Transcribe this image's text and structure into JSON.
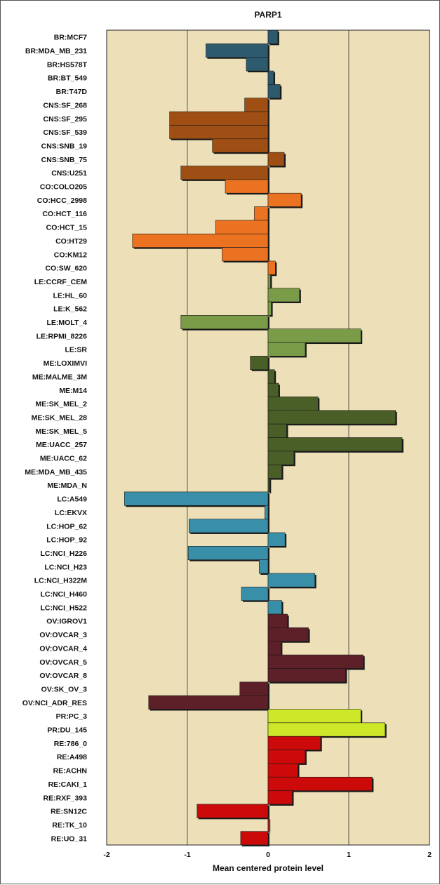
{
  "chart_data": {
    "type": "bar",
    "orientation": "horizontal",
    "title": "PARP1",
    "xlabel": "Mean centered protein level",
    "ylabel": "",
    "xlim": [
      -2,
      2
    ],
    "xticks": [
      "-2",
      "-1",
      "0",
      "1",
      "2"
    ],
    "grid": true,
    "legend": "none",
    "plot_background": "#ede0b8",
    "categories": [
      "BR:MCF7",
      "BR:MDA_MB_231",
      "BR:HS578T",
      "BR:BT_549",
      "BR:T47D",
      "CNS:SF_268",
      "CNS:SF_295",
      "CNS:SF_539",
      "CNS:SNB_19",
      "CNS:SNB_75",
      "CNS:U251",
      "CO:COLO205",
      "CO:HCC_2998",
      "CO:HCT_116",
      "CO:HCT_15",
      "CO:HT29",
      "CO:KM12",
      "CO:SW_620",
      "LE:CCRF_CEM",
      "LE:HL_60",
      "LE:K_562",
      "LE:MOLT_4",
      "LE:RPMI_8226",
      "LE:SR",
      "ME:LOXIMVI",
      "ME:MALME_3M",
      "ME:M14",
      "ME:SK_MEL_2",
      "ME:SK_MEL_28",
      "ME:SK_MEL_5",
      "ME:UACC_257",
      "ME:UACC_62",
      "ME:MDA_MB_435",
      "ME:MDA_N",
      "LC:A549",
      "LC:EKVX",
      "LC:HOP_62",
      "LC:HOP_92",
      "LC:NCI_H226",
      "LC:NCI_H23",
      "LC:NCI_H322M",
      "LC:NCI_H460",
      "LC:NCI_H522",
      "OV:IGROV1",
      "OV:OVCAR_3",
      "OV:OVCAR_4",
      "OV:OVCAR_5",
      "OV:OVCAR_8",
      "OV:SK_OV_3",
      "OV:NCI_ADR_RES",
      "PR:PC_3",
      "PR:DU_145",
      "RE:786_0",
      "RE:A498",
      "RE:ACHN",
      "RE:CAKI_1",
      "RE:RXF_393",
      "RE:SN12C",
      "RE:TK_10",
      "RE:UO_31"
    ],
    "values": [
      0.12,
      -0.77,
      -0.27,
      0.07,
      0.15,
      -0.29,
      -1.22,
      -1.22,
      -0.69,
      0.2,
      -1.08,
      -0.53,
      0.41,
      -0.17,
      -0.65,
      -1.68,
      -0.57,
      0.09,
      0.03,
      0.39,
      0.04,
      -1.08,
      1.15,
      0.46,
      -0.22,
      0.08,
      0.13,
      0.62,
      1.58,
      0.23,
      1.66,
      0.32,
      0.17,
      0.02,
      -1.78,
      -0.04,
      -0.98,
      0.21,
      -0.99,
      -0.11,
      0.58,
      -0.33,
      0.17,
      0.24,
      0.5,
      0.16,
      1.18,
      0.96,
      -0.35,
      -1.48,
      1.15,
      1.45,
      0.65,
      0.46,
      0.37,
      1.29,
      0.3,
      -0.88,
      0.01,
      -0.34
    ],
    "group_colors": {
      "BR": "#2e5a6e",
      "CNS": "#a04f14",
      "CO": "#ea7220",
      "LE": "#7a9c48",
      "ME": "#4a5e28",
      "LC": "#3a8fa8",
      "OV": "#5e2028",
      "PR": "#cde828",
      "RE": "#cc0a0a"
    }
  }
}
